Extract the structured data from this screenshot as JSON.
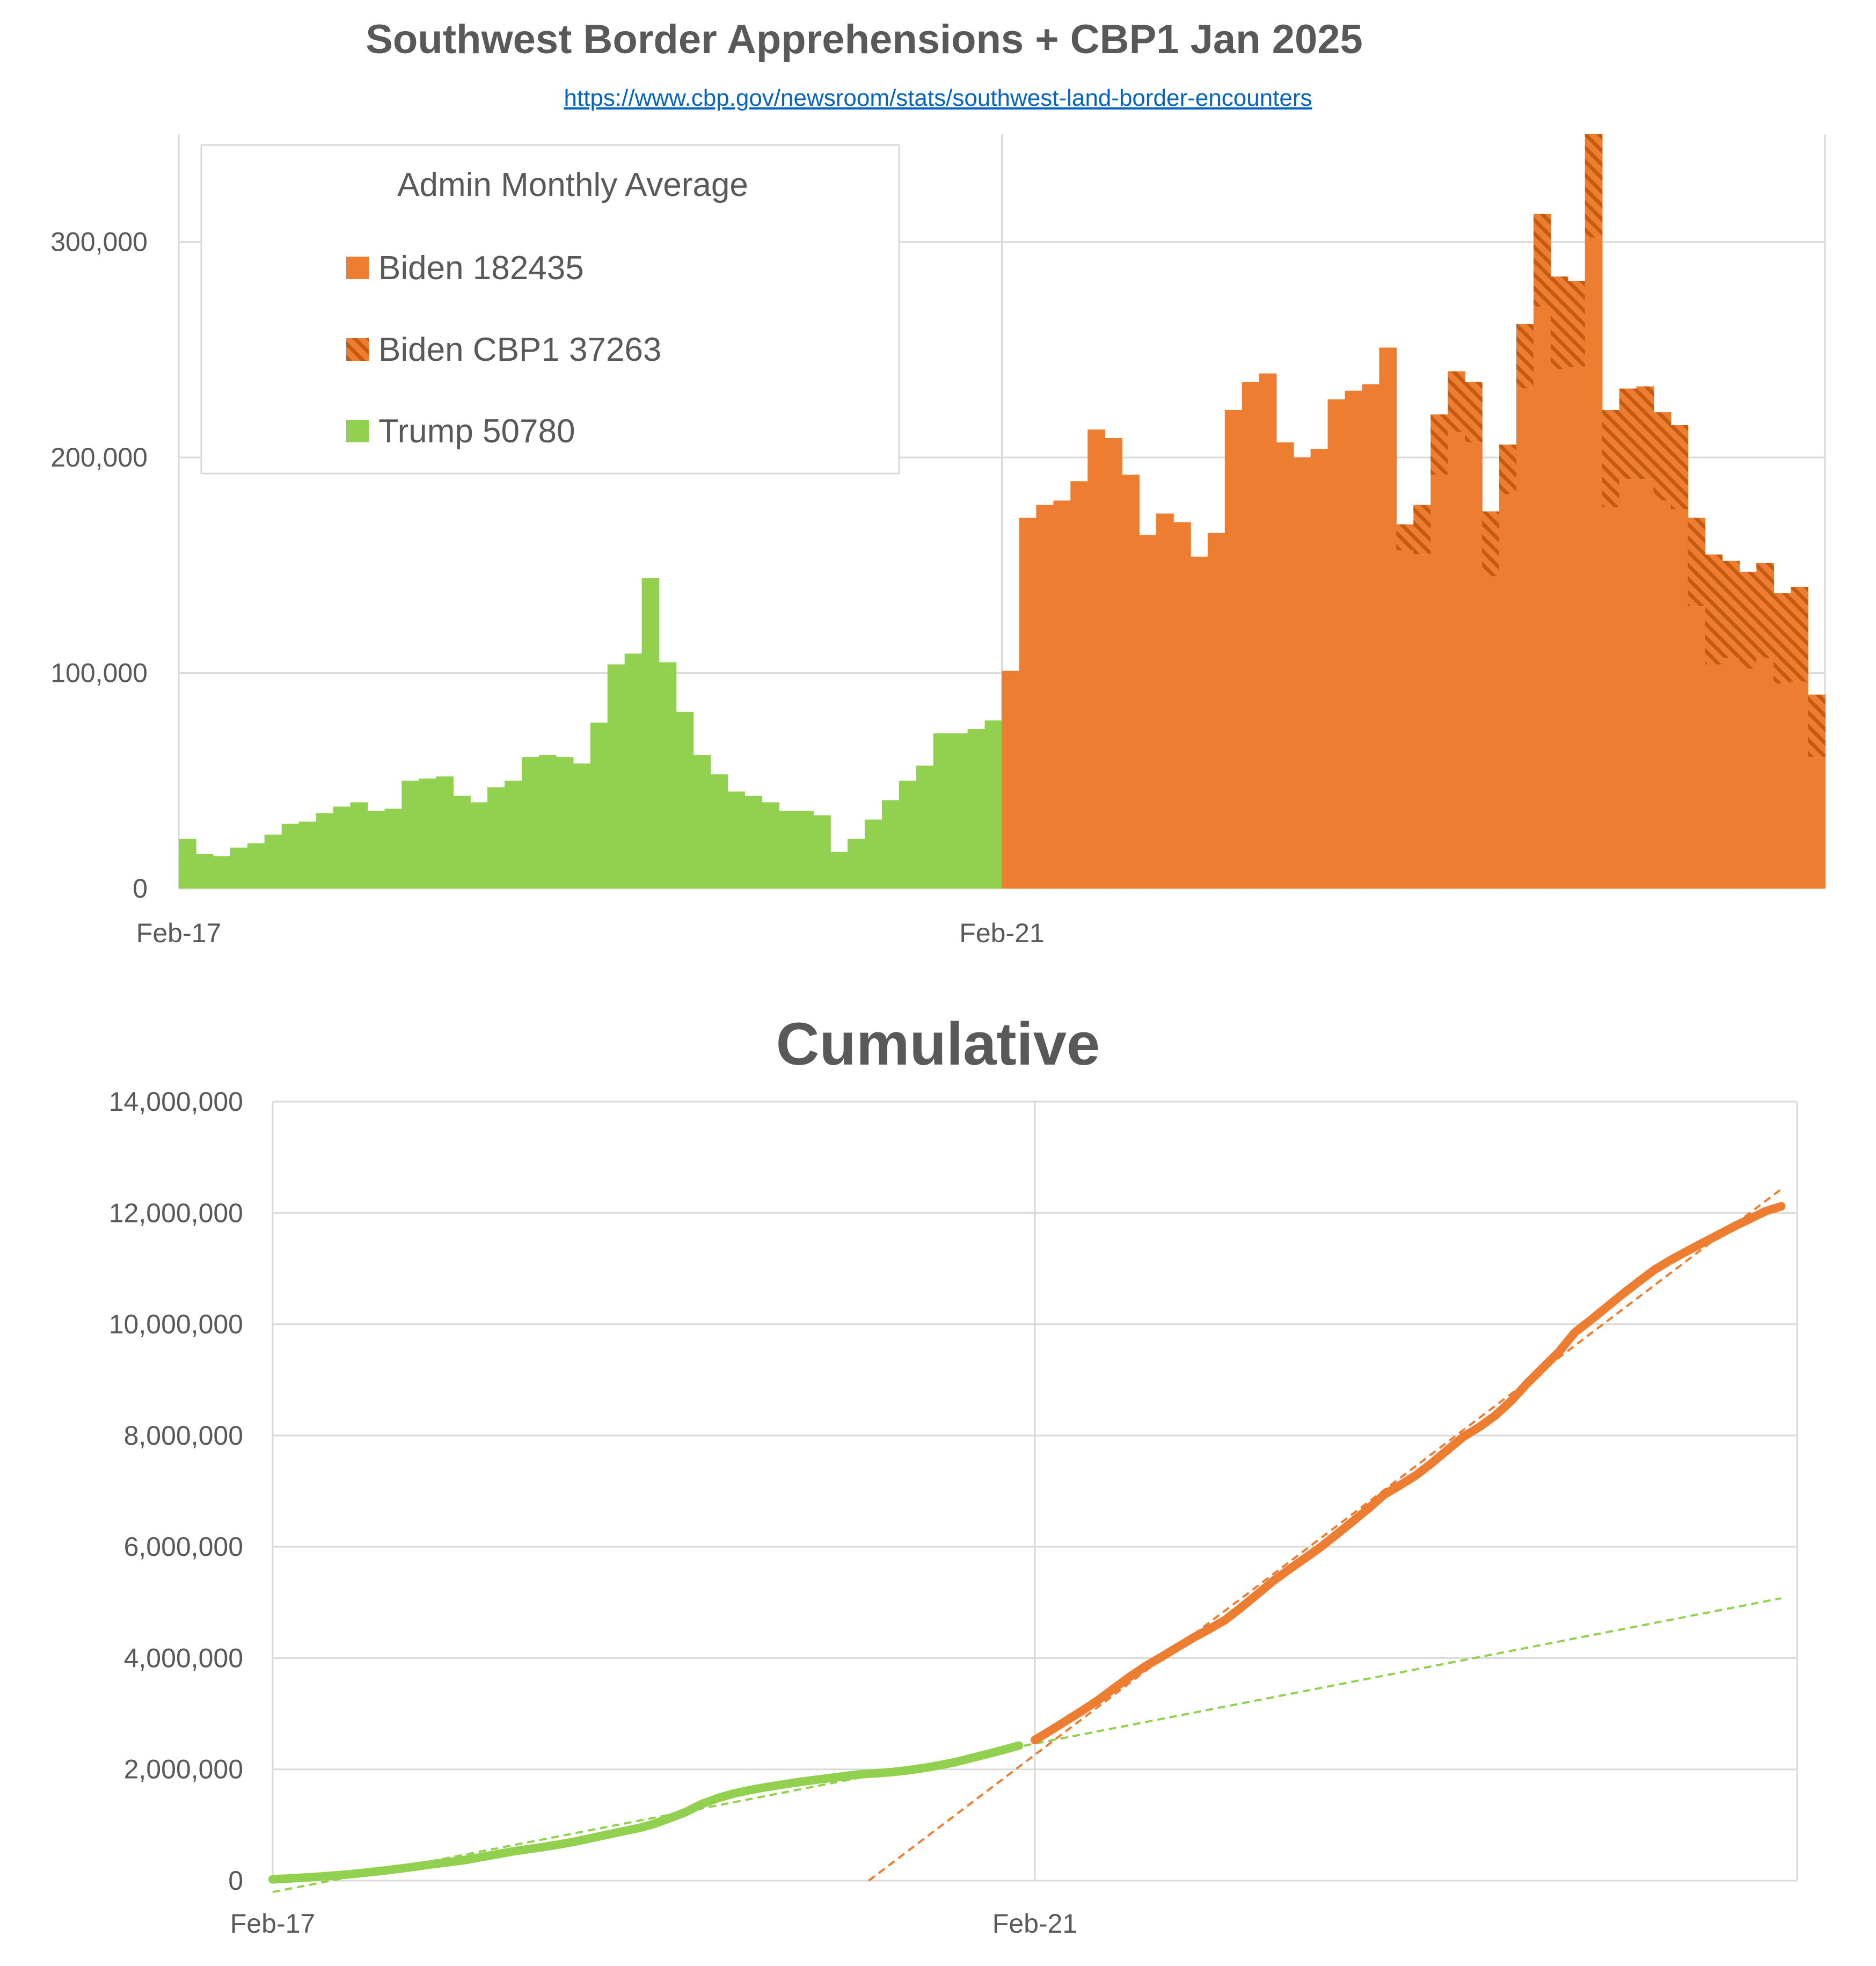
{
  "title": "Southwest Border Apprehensions + CBP1 Jan 2025",
  "source_url": "https://www.cbp.gov/newsroom/stats/southwest-land-border-encounters",
  "colors": {
    "biden": "#ED7D31",
    "biden_hatch": "#C55A11",
    "trump": "#92D050",
    "grid": "#D9D9D9",
    "text": "#595959"
  },
  "chart_data": [
    {
      "type": "bar",
      "subtype": "stacked-bar",
      "x_tick_labels": [
        "Feb-17",
        "Feb-21"
      ],
      "ylim": [
        0,
        350000
      ],
      "y_ticks": [
        0,
        100000,
        200000,
        300000
      ],
      "y_tick_labels": [
        "0",
        "100,000",
        "200,000",
        "300,000"
      ],
      "grid": true,
      "legend": {
        "title": "Admin Monthly Average",
        "placement": "top-left",
        "entries": [
          "Biden 182435",
          "Biden CBP1 37263",
          "Trump 50780"
        ]
      },
      "series": [
        {
          "name": "Trump 50780",
          "start_month": "Feb-17",
          "values": [
            23000,
            16000,
            15000,
            19000,
            21000,
            25000,
            30000,
            31000,
            35000,
            38000,
            40000,
            36000,
            37000,
            50000,
            51000,
            52000,
            43000,
            40000,
            47000,
            50000,
            61000,
            62000,
            61000,
            58000,
            77000,
            104000,
            109000,
            144000,
            105000,
            82000,
            62000,
            53000,
            45000,
            43000,
            40000,
            36000,
            36000,
            34000,
            17000,
            23000,
            32000,
            41000,
            50000,
            57000,
            72000,
            72000,
            74000,
            78000
          ]
        },
        {
          "name": "Biden 182435",
          "start_month": "Feb-21",
          "values": [
            101000,
            172000,
            178000,
            180000,
            189000,
            213000,
            209000,
            192000,
            164000,
            174000,
            170000,
            154000,
            165000,
            222000,
            235000,
            239000,
            207000,
            200000,
            204000,
            227000,
            231000,
            234000,
            251000,
            157000,
            155000,
            192000,
            212000,
            207000,
            145000,
            183000,
            232000,
            270000,
            241000,
            242000,
            302000,
            177000,
            190000,
            190000,
            180000,
            176000,
            131000,
            104000,
            107000,
            102000,
            107000,
            95000,
            96000,
            61000
          ]
        },
        {
          "name": "Biden CBP1 37263",
          "start_month": "Feb-21",
          "values": [
            0,
            0,
            0,
            0,
            0,
            0,
            0,
            0,
            0,
            0,
            0,
            0,
            0,
            0,
            0,
            0,
            0,
            0,
            0,
            0,
            0,
            0,
            0,
            12000,
            23000,
            28000,
            28000,
            28000,
            30000,
            23000,
            30000,
            43000,
            43000,
            40000,
            48000,
            45000,
            42000,
            43000,
            41000,
            39000,
            41000,
            51000,
            45000,
            45000,
            44000,
            42000,
            44000,
            29000
          ]
        }
      ]
    },
    {
      "type": "line",
      "title": "Cumulative",
      "x_tick_labels": [
        "Feb-17",
        "Feb-21"
      ],
      "ylim": [
        0,
        14000000
      ],
      "y_ticks": [
        0,
        2000000,
        4000000,
        6000000,
        8000000,
        10000000,
        12000000,
        14000000
      ],
      "y_tick_labels": [
        "0",
        "2,000,000",
        "4,000,000",
        "6,000,000",
        "8,000,000",
        "10,000,000",
        "12,000,000",
        "14,000,000"
      ],
      "grid": true,
      "series": [
        {
          "color": "#92D050",
          "style": "cumulative",
          "source": "trump"
        },
        {
          "color": "#ED7D31",
          "style": "cumulative",
          "source": "biden_total"
        },
        {
          "color": "#92D050",
          "style": "linear-trend-dashed",
          "source": "trump"
        },
        {
          "color": "#ED7D31",
          "style": "linear-trend-dashed",
          "source": "biden_total"
        }
      ]
    }
  ]
}
